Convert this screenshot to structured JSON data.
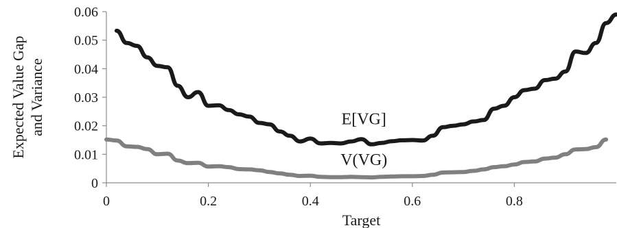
{
  "chart_data": {
    "type": "line",
    "xlabel": "Target",
    "ylabel": [
      "Expected Value Gap",
      "and Variance"
    ],
    "xlim": [
      0,
      1
    ],
    "ylim": [
      0,
      0.06
    ],
    "x_ticks": [
      "0",
      "0.2",
      "0.4",
      "0.6",
      "0.8"
    ],
    "y_ticks": [
      "0",
      "0.01",
      "0.02",
      "0.03",
      "0.04",
      "0.05",
      "0.06"
    ],
    "grid": false,
    "legend": "none",
    "series": [
      {
        "name": "E[VG]",
        "color": "#1a1a1a",
        "points": [
          [
            0.02,
            0.0533
          ],
          [
            0.04,
            0.049
          ],
          [
            0.06,
            0.048
          ],
          [
            0.08,
            0.044
          ],
          [
            0.1,
            0.041
          ],
          [
            0.12,
            0.0405
          ],
          [
            0.14,
            0.034
          ],
          [
            0.16,
            0.03
          ],
          [
            0.18,
            0.0318
          ],
          [
            0.2,
            0.027
          ],
          [
            0.22,
            0.0272
          ],
          [
            0.24,
            0.0255
          ],
          [
            0.26,
            0.024
          ],
          [
            0.28,
            0.0232
          ],
          [
            0.3,
            0.021
          ],
          [
            0.32,
            0.0205
          ],
          [
            0.34,
            0.018
          ],
          [
            0.36,
            0.0165
          ],
          [
            0.38,
            0.0145
          ],
          [
            0.4,
            0.0155
          ],
          [
            0.42,
            0.0138
          ],
          [
            0.44,
            0.014
          ],
          [
            0.46,
            0.0138
          ],
          [
            0.48,
            0.0145
          ],
          [
            0.5,
            0.0153
          ],
          [
            0.52,
            0.0135
          ],
          [
            0.54,
            0.014
          ],
          [
            0.56,
            0.0146
          ],
          [
            0.58,
            0.0149
          ],
          [
            0.6,
            0.015
          ],
          [
            0.62,
            0.0148
          ],
          [
            0.64,
            0.0165
          ],
          [
            0.66,
            0.0195
          ],
          [
            0.68,
            0.02
          ],
          [
            0.7,
            0.0205
          ],
          [
            0.72,
            0.0215
          ],
          [
            0.74,
            0.022
          ],
          [
            0.76,
            0.026
          ],
          [
            0.78,
            0.027
          ],
          [
            0.8,
            0.03
          ],
          [
            0.82,
            0.0325
          ],
          [
            0.84,
            0.033
          ],
          [
            0.86,
            0.036
          ],
          [
            0.88,
            0.0365
          ],
          [
            0.9,
            0.039
          ],
          [
            0.92,
            0.046
          ],
          [
            0.94,
            0.0455
          ],
          [
            0.96,
            0.049
          ],
          [
            0.98,
            0.056
          ],
          [
            1.0,
            0.059
          ]
        ]
      },
      {
        "name": "V(VG)",
        "color": "#808080",
        "points": [
          [
            0.0,
            0.0152
          ],
          [
            0.02,
            0.0148
          ],
          [
            0.04,
            0.0128
          ],
          [
            0.06,
            0.0126
          ],
          [
            0.08,
            0.0118
          ],
          [
            0.1,
            0.01
          ],
          [
            0.12,
            0.0102
          ],
          [
            0.14,
            0.0078
          ],
          [
            0.16,
            0.0069
          ],
          [
            0.18,
            0.007
          ],
          [
            0.2,
            0.0057
          ],
          [
            0.22,
            0.0058
          ],
          [
            0.24,
            0.0055
          ],
          [
            0.26,
            0.0048
          ],
          [
            0.28,
            0.0047
          ],
          [
            0.3,
            0.0044
          ],
          [
            0.32,
            0.0038
          ],
          [
            0.34,
            0.0033
          ],
          [
            0.36,
            0.0028
          ],
          [
            0.38,
            0.0024
          ],
          [
            0.4,
            0.0025
          ],
          [
            0.42,
            0.0021
          ],
          [
            0.44,
            0.002
          ],
          [
            0.46,
            0.002
          ],
          [
            0.48,
            0.0021
          ],
          [
            0.5,
            0.002
          ],
          [
            0.52,
            0.0019
          ],
          [
            0.54,
            0.0021
          ],
          [
            0.56,
            0.0022
          ],
          [
            0.58,
            0.0023
          ],
          [
            0.6,
            0.0023
          ],
          [
            0.62,
            0.0024
          ],
          [
            0.64,
            0.0028
          ],
          [
            0.66,
            0.0036
          ],
          [
            0.68,
            0.0037
          ],
          [
            0.7,
            0.0038
          ],
          [
            0.72,
            0.0042
          ],
          [
            0.74,
            0.0047
          ],
          [
            0.76,
            0.0055
          ],
          [
            0.78,
            0.0058
          ],
          [
            0.8,
            0.0064
          ],
          [
            0.82,
            0.0073
          ],
          [
            0.84,
            0.0075
          ],
          [
            0.86,
            0.0085
          ],
          [
            0.88,
            0.0088
          ],
          [
            0.9,
            0.01
          ],
          [
            0.92,
            0.0117
          ],
          [
            0.94,
            0.0118
          ],
          [
            0.96,
            0.0125
          ],
          [
            0.98,
            0.0152
          ]
        ]
      }
    ],
    "annotations": [
      {
        "text": "E[VG]",
        "x": 0.505,
        "y": 0.0205
      },
      {
        "text": "V(VG)",
        "x": 0.505,
        "y": 0.0062
      }
    ]
  }
}
